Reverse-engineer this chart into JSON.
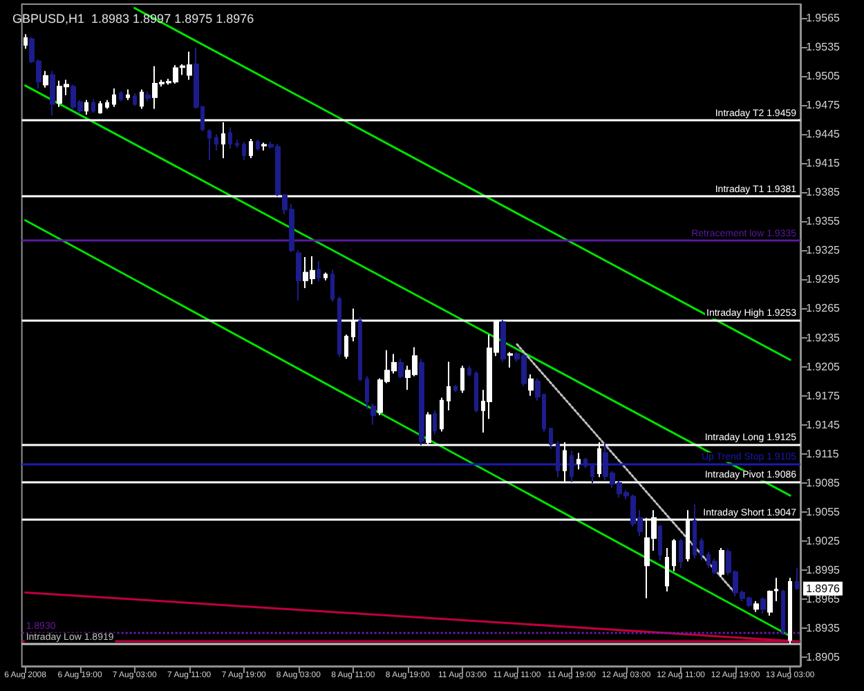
{
  "chart_data": {
    "type": "candlestick",
    "title": "GBPUSD,H1  1.8983 1.8997 1.8975 1.8976",
    "categories": [
      "6 Aug 2008",
      null,
      null,
      null,
      null,
      null,
      null,
      null,
      "6 Aug 19:00",
      null,
      null,
      null,
      null,
      null,
      null,
      null,
      "7 Aug 03:00",
      null,
      null,
      null,
      null,
      null,
      null,
      null,
      "7 Aug 11:00",
      null,
      null,
      null,
      null,
      null,
      null,
      null,
      "7 Aug 19:00",
      null,
      null,
      null,
      null,
      null,
      null,
      null,
      "8 Aug 03:00",
      null,
      null,
      null,
      null,
      null,
      null,
      null,
      "8 Aug 11:00",
      null,
      null,
      null,
      null,
      null,
      null,
      null,
      "8 Aug 19:00",
      null,
      null,
      null,
      null,
      null,
      null,
      null,
      "11 Aug 03:00",
      null,
      null,
      null,
      null,
      null,
      null,
      null,
      "11 Aug 11:00",
      null,
      null,
      null,
      null,
      null,
      null,
      null,
      "11 Aug 19:00",
      null,
      null,
      null,
      null,
      null,
      null,
      null,
      "12 Aug 03:00",
      null,
      null,
      null,
      null,
      null,
      null,
      null,
      "12 Aug 11:00",
      null,
      null,
      null,
      null,
      null,
      null,
      null,
      "12 Aug 19:00",
      null,
      null,
      null,
      null,
      null,
      null,
      null,
      "13 Aug 03:00",
      null
    ],
    "ylim": [
      1.8896,
      1.9579
    ],
    "yticks": [
      1.8905,
      1.8935,
      1.8965,
      1.8995,
      1.9025,
      1.9055,
      1.9085,
      1.9115,
      1.9145,
      1.9175,
      1.9205,
      1.9235,
      1.9265,
      1.9295,
      1.9325,
      1.9355,
      1.9385,
      1.9415,
      1.9445,
      1.9475,
      1.9505,
      1.9535,
      1.9565
    ],
    "marker": "none",
    "series": [
      {
        "ohlc": [
          [
            1.9537,
            1.9548,
            1.9533,
            1.9544
          ],
          [
            1.9543,
            1.9545,
            1.9518,
            1.952
          ],
          [
            1.952,
            1.9522,
            1.9492,
            1.9499
          ],
          [
            1.9496,
            1.951,
            1.9493,
            1.9505
          ],
          [
            1.9506,
            1.951,
            1.9464,
            1.9476
          ],
          [
            1.9477,
            1.95,
            1.9473,
            1.9494
          ],
          [
            1.9494,
            1.9501,
            1.9485,
            1.9496
          ],
          [
            1.9494,
            1.9496,
            1.947,
            1.9473
          ],
          [
            1.9478,
            1.948,
            1.9466,
            1.9469
          ],
          [
            1.9469,
            1.948,
            1.9465,
            1.9477
          ],
          [
            1.9477,
            1.9481,
            1.9467,
            1.9469
          ],
          [
            1.9467,
            1.9479,
            1.9466,
            1.9476
          ],
          [
            1.9473,
            1.948,
            1.9471,
            1.9477
          ],
          [
            1.9476,
            1.9492,
            1.9473,
            1.9485
          ],
          [
            1.9487,
            1.9489,
            1.9479,
            1.9481
          ],
          [
            1.9483,
            1.9491,
            1.948,
            1.9485
          ],
          [
            1.9484,
            1.9487,
            1.9474,
            1.9476
          ],
          [
            1.9474,
            1.9491,
            1.9471,
            1.9488
          ],
          [
            1.9485,
            1.9489,
            1.9479,
            1.9482
          ],
          [
            1.9483,
            1.9515,
            1.9471,
            1.9497
          ],
          [
            1.9497,
            1.9501,
            1.9494,
            1.9498
          ],
          [
            1.9498,
            1.9502,
            1.9496,
            1.9499
          ],
          [
            1.9499,
            1.9516,
            1.9497,
            1.9513
          ],
          [
            1.9514,
            1.9517,
            1.9506,
            1.9515
          ],
          [
            1.9506,
            1.953,
            1.9501,
            1.9516
          ],
          [
            1.9517,
            1.9534,
            1.9471,
            1.9473
          ],
          [
            1.9473,
            1.9474,
            1.9448,
            1.945
          ],
          [
            1.9448,
            1.945,
            1.9418,
            1.9441
          ],
          [
            1.9441,
            1.9445,
            1.9428,
            1.9435
          ],
          [
            1.9435,
            1.9457,
            1.942,
            1.9445
          ],
          [
            1.9446,
            1.9452,
            1.943,
            1.9435
          ],
          [
            1.9435,
            1.9439,
            1.9431,
            1.9434
          ],
          [
            1.9434,
            1.9437,
            1.9418,
            1.9423
          ],
          [
            1.9423,
            1.944,
            1.942,
            1.9437
          ],
          [
            1.9437,
            1.9439,
            1.9428,
            1.943
          ],
          [
            1.9433,
            1.9436,
            1.9428,
            1.9434
          ],
          [
            1.9434,
            1.9437,
            1.943,
            1.9432
          ],
          [
            1.9432,
            1.9435,
            1.9381,
            1.9383
          ],
          [
            1.9382,
            1.9383,
            1.9362,
            1.9367
          ],
          [
            1.9367,
            1.9373,
            1.9323,
            1.9325
          ],
          [
            1.9322,
            1.9325,
            1.9273,
            1.9294
          ],
          [
            1.9294,
            1.9318,
            1.9286,
            1.9302
          ],
          [
            1.9296,
            1.9319,
            1.929,
            1.9304
          ],
          [
            1.9305,
            1.9314,
            1.9293,
            1.9297
          ],
          [
            1.9297,
            1.9302,
            1.9294,
            1.93
          ],
          [
            1.93,
            1.9305,
            1.9272,
            1.9275
          ],
          [
            1.9275,
            1.9277,
            1.9215,
            1.9218
          ],
          [
            1.9216,
            1.9238,
            1.9213,
            1.9236
          ],
          [
            1.9236,
            1.9265,
            1.9231,
            1.9252
          ],
          [
            1.9252,
            1.9256,
            1.919,
            1.9192
          ],
          [
            1.9192,
            1.9195,
            1.9161,
            1.9169
          ],
          [
            1.9164,
            1.9167,
            1.9145,
            1.9155
          ],
          [
            1.9158,
            1.9193,
            1.9155,
            1.9191
          ],
          [
            1.919,
            1.9222,
            1.9188,
            1.9201
          ],
          [
            1.9201,
            1.9218,
            1.9198,
            1.9209
          ],
          [
            1.9209,
            1.9213,
            1.9193,
            1.9195
          ],
          [
            1.9194,
            1.9206,
            1.9181,
            1.9201
          ],
          [
            1.9197,
            1.9225,
            1.9195,
            1.9216
          ],
          [
            1.9209,
            1.9213,
            1.9124,
            1.9128
          ],
          [
            1.9127,
            1.9158,
            1.9124,
            1.9155
          ],
          [
            1.9156,
            1.916,
            1.9135,
            1.9139
          ],
          [
            1.9141,
            1.9173,
            1.9138,
            1.917
          ],
          [
            1.917,
            1.921,
            1.916,
            1.9184
          ],
          [
            1.9184,
            1.9186,
            1.9179,
            1.9181
          ],
          [
            1.9181,
            1.9206,
            1.9178,
            1.9203
          ],
          [
            1.9203,
            1.9206,
            1.9195,
            1.9197
          ],
          [
            1.9198,
            1.92,
            1.9158,
            1.916
          ],
          [
            1.916,
            1.9181,
            1.9137,
            1.9169
          ],
          [
            1.9169,
            1.9238,
            1.9151,
            1.9224
          ],
          [
            1.922,
            1.9253,
            1.9216,
            1.9251
          ],
          [
            1.9251,
            1.9253,
            1.921,
            1.9213
          ],
          [
            1.9217,
            1.922,
            1.9204,
            1.9218
          ],
          [
            1.9218,
            1.922,
            1.921,
            1.9213
          ],
          [
            1.9216,
            1.9218,
            1.9185,
            1.9188
          ],
          [
            1.9181,
            1.9197,
            1.9175,
            1.9192
          ],
          [
            1.919,
            1.9193,
            1.917,
            1.9174
          ],
          [
            1.9176,
            1.9177,
            1.9138,
            1.9141
          ],
          [
            1.9141,
            1.9142,
            1.912,
            1.9125
          ],
          [
            1.9125,
            1.9128,
            1.9091,
            1.9098
          ],
          [
            1.9098,
            1.9127,
            1.9085,
            1.9118
          ],
          [
            1.9113,
            1.9118,
            1.9086,
            1.9092
          ],
          [
            1.9105,
            1.9116,
            1.9099,
            1.9109
          ],
          [
            1.9109,
            1.9111,
            1.91,
            1.9103
          ],
          [
            1.9102,
            1.9104,
            1.9085,
            1.9092
          ],
          [
            1.9095,
            1.9127,
            1.9091,
            1.912
          ],
          [
            1.9116,
            1.9127,
            1.9088,
            1.9092
          ],
          [
            1.9095,
            1.9097,
            1.908,
            1.9084
          ],
          [
            1.9085,
            1.9087,
            1.907,
            1.9074
          ],
          [
            1.9075,
            1.9078,
            1.9068,
            1.9072
          ],
          [
            1.9071,
            1.9073,
            1.904,
            1.9043
          ],
          [
            1.9049,
            1.9057,
            1.903,
            1.9035
          ],
          [
            1.9,
            1.9049,
            1.8966,
            1.9028
          ],
          [
            1.9028,
            1.9057,
            1.9015,
            1.9049
          ],
          [
            1.904,
            1.9042,
            1.9005,
            1.9011
          ],
          [
            1.8979,
            1.9018,
            1.8973,
            1.9008
          ],
          [
            1.9,
            1.9027,
            1.8994,
            1.9025
          ],
          [
            1.9025,
            1.9027,
            1.8997,
            1.9004
          ],
          [
            1.9007,
            1.9057,
            1.9004,
            1.9046
          ],
          [
            1.9046,
            1.9063,
            1.9007,
            1.9011
          ],
          [
            1.9025,
            1.9028,
            1.9005,
            1.9011
          ],
          [
            1.9011,
            1.9014,
            1.8997,
            1.9001
          ],
          [
            1.9004,
            1.9007,
            1.8991,
            1.8993
          ],
          [
            1.8991,
            1.9018,
            1.8988,
            1.9015
          ],
          [
            1.9014,
            1.9017,
            1.899,
            1.8993
          ],
          [
            1.8993,
            1.8995,
            1.8968,
            1.8972
          ],
          [
            1.8972,
            1.8974,
            1.8963,
            1.8966
          ],
          [
            1.8966,
            1.8968,
            1.8957,
            1.8959
          ],
          [
            1.8955,
            1.8963,
            1.8952,
            1.896
          ],
          [
            1.8965,
            1.8967,
            1.895,
            1.8955
          ],
          [
            1.8952,
            1.8974,
            1.8948,
            1.8973
          ],
          [
            1.8974,
            1.8987,
            1.8963,
            1.8975
          ],
          [
            1.8973,
            1.8975,
            1.8928,
            1.8932
          ],
          [
            1.8923,
            1.8987,
            1.8919,
            1.8983
          ],
          [
            1.8983,
            1.8997,
            1.8975,
            1.8976
          ]
        ],
        "colors": [
          "#ffffff",
          "#1c1c8c",
          "#1c1c8c",
          "#ffffff",
          "#1c1c8c",
          "#ffffff",
          "#ffffff",
          "#1c1c8c",
          "#1c1c8c",
          "#ffffff",
          "#1c1c8c",
          "#ffffff",
          "#ffffff",
          "#ffffff",
          "#1c1c8c",
          "#ffffff",
          "#1c1c8c",
          "#ffffff",
          "#1c1c8c",
          "#ffffff",
          "#ffffff",
          "#ffffff",
          "#ffffff",
          "#ffffff",
          "#ffffff",
          "#1c1c8c",
          "#1c1c8c",
          "#1c1c8c",
          "#1c1c8c",
          "#ffffff",
          "#1c1c8c",
          "#1c1c8c",
          "#1c1c8c",
          "#ffffff",
          "#1c1c8c",
          "#ffffff",
          "#1c1c8c",
          "#1c1c8c",
          "#1c1c8c",
          "#1c1c8c",
          "#1c1c8c",
          "#ffffff",
          "#ffffff",
          "#1c1c8c",
          "#ffffff",
          "#1c1c8c",
          "#1c1c8c",
          "#ffffff",
          "#ffffff",
          "#1c1c8c",
          "#1c1c8c",
          "#1c1c8c",
          "#ffffff",
          "#ffffff",
          "#ffffff",
          "#1c1c8c",
          "#ffffff",
          "#ffffff",
          "#1c1c8c",
          "#ffffff",
          "#1c1c8c",
          "#ffffff",
          "#ffffff",
          "#1c1c8c",
          "#ffffff",
          "#1c1c8c",
          "#1c1c8c",
          "#ffffff",
          "#ffffff",
          "#ffffff",
          "#1c1c8c",
          "#ffffff",
          "#1c1c8c",
          "#1c1c8c",
          "#ffffff",
          "#1c1c8c",
          "#1c1c8c",
          "#1c1c8c",
          "#1c1c8c",
          "#ffffff",
          "#1c1c8c",
          "#ffffff",
          "#1c1c8c",
          "#1c1c8c",
          "#ffffff",
          "#1c1c8c",
          "#1c1c8c",
          "#1c1c8c",
          "#1c1c8c",
          "#1c1c8c",
          "#1c1c8c",
          "#ffffff",
          "#ffffff",
          "#1c1c8c",
          "#ffffff",
          "#ffffff",
          "#1c1c8c",
          "#ffffff",
          "#1c1c8c",
          "#1c1c8c",
          "#1c1c8c",
          "#1c1c8c",
          "#ffffff",
          "#1c1c8c",
          "#1c1c8c",
          "#1c1c8c",
          "#1c1c8c",
          "#ffffff",
          "#1c1c8c",
          "#ffffff",
          "#ffffff",
          "#1c1c8c",
          "#ffffff",
          "#1c1c8c"
        ]
      },
      {
        "type": "line",
        "color": "#00e000",
        "line_style": "solid",
        "x": [
          "7 Aug 03:00",
          "13 Aug 03:00"
        ],
        "values": [
          1.9575,
          1.9212
        ]
      },
      {
        "type": "line",
        "color": "#00e000",
        "line_style": "solid",
        "x": [
          "6 Aug 2008",
          "13 Aug 03:00"
        ],
        "values": [
          1.9495,
          1.9072
        ]
      },
      {
        "type": "line",
        "color": "#00e000",
        "line_style": "solid",
        "x": [
          "6 Aug 2008",
          "13 Aug 03:00"
        ],
        "values": [
          1.9356,
          1.8927
        ]
      },
      {
        "type": "line",
        "color": "#c0c0c0",
        "line_style": "dotted",
        "x": [
          "11 Aug 11:00",
          "12 Aug 19:00"
        ],
        "values": [
          1.9228,
          1.8971
        ]
      },
      {
        "type": "line",
        "color": "#c0003c",
        "line_style": "solid",
        "x": [
          "6 Aug 2008",
          "13 Aug 03:00"
        ],
        "values": [
          1.8972,
          1.8922
        ]
      }
    ],
    "ref_lines": [
      {
        "axis": "y",
        "value": 1.9459,
        "label": "Intraday T2 1.9459",
        "color": "#ffffff"
      },
      {
        "axis": "y",
        "value": 1.9381,
        "label": "Intraday T1 1.9381",
        "color": "#ffffff"
      },
      {
        "axis": "y",
        "value": 1.9335,
        "label": "Retracement low 1.9335",
        "color": "#5a1aa0"
      },
      {
        "axis": "y",
        "value": 1.9253,
        "label": "Intraday High 1.9253",
        "color": "#ffffff"
      },
      {
        "axis": "y",
        "value": 1.9125,
        "label": "Intraday Long 1.9125",
        "color": "#ffffff"
      },
      {
        "axis": "y",
        "value": 1.9105,
        "label": "Up Trend Stop 1.9105",
        "color": "#1a1ab4"
      },
      {
        "axis": "y",
        "value": 1.9086,
        "label": "Intraday Pivot 1.9086",
        "color": "#ffffff"
      },
      {
        "axis": "y",
        "value": 1.9047,
        "label": "Intraday Short 1.9047",
        "color": "#ffffff"
      },
      {
        "axis": "y",
        "value": 1.893,
        "label": "1.8930",
        "color": "#6a1aa0",
        "line_style": "dotted"
      },
      {
        "axis": "y",
        "value": 1.8922,
        "color": "#c0003c"
      },
      {
        "axis": "y",
        "value": 1.8919,
        "label": "Intraday Low 1.8919",
        "color": "#c0c0c0"
      }
    ],
    "annotations": [
      {
        "text": "1.8976",
        "y": 1.8976
      }
    ]
  }
}
